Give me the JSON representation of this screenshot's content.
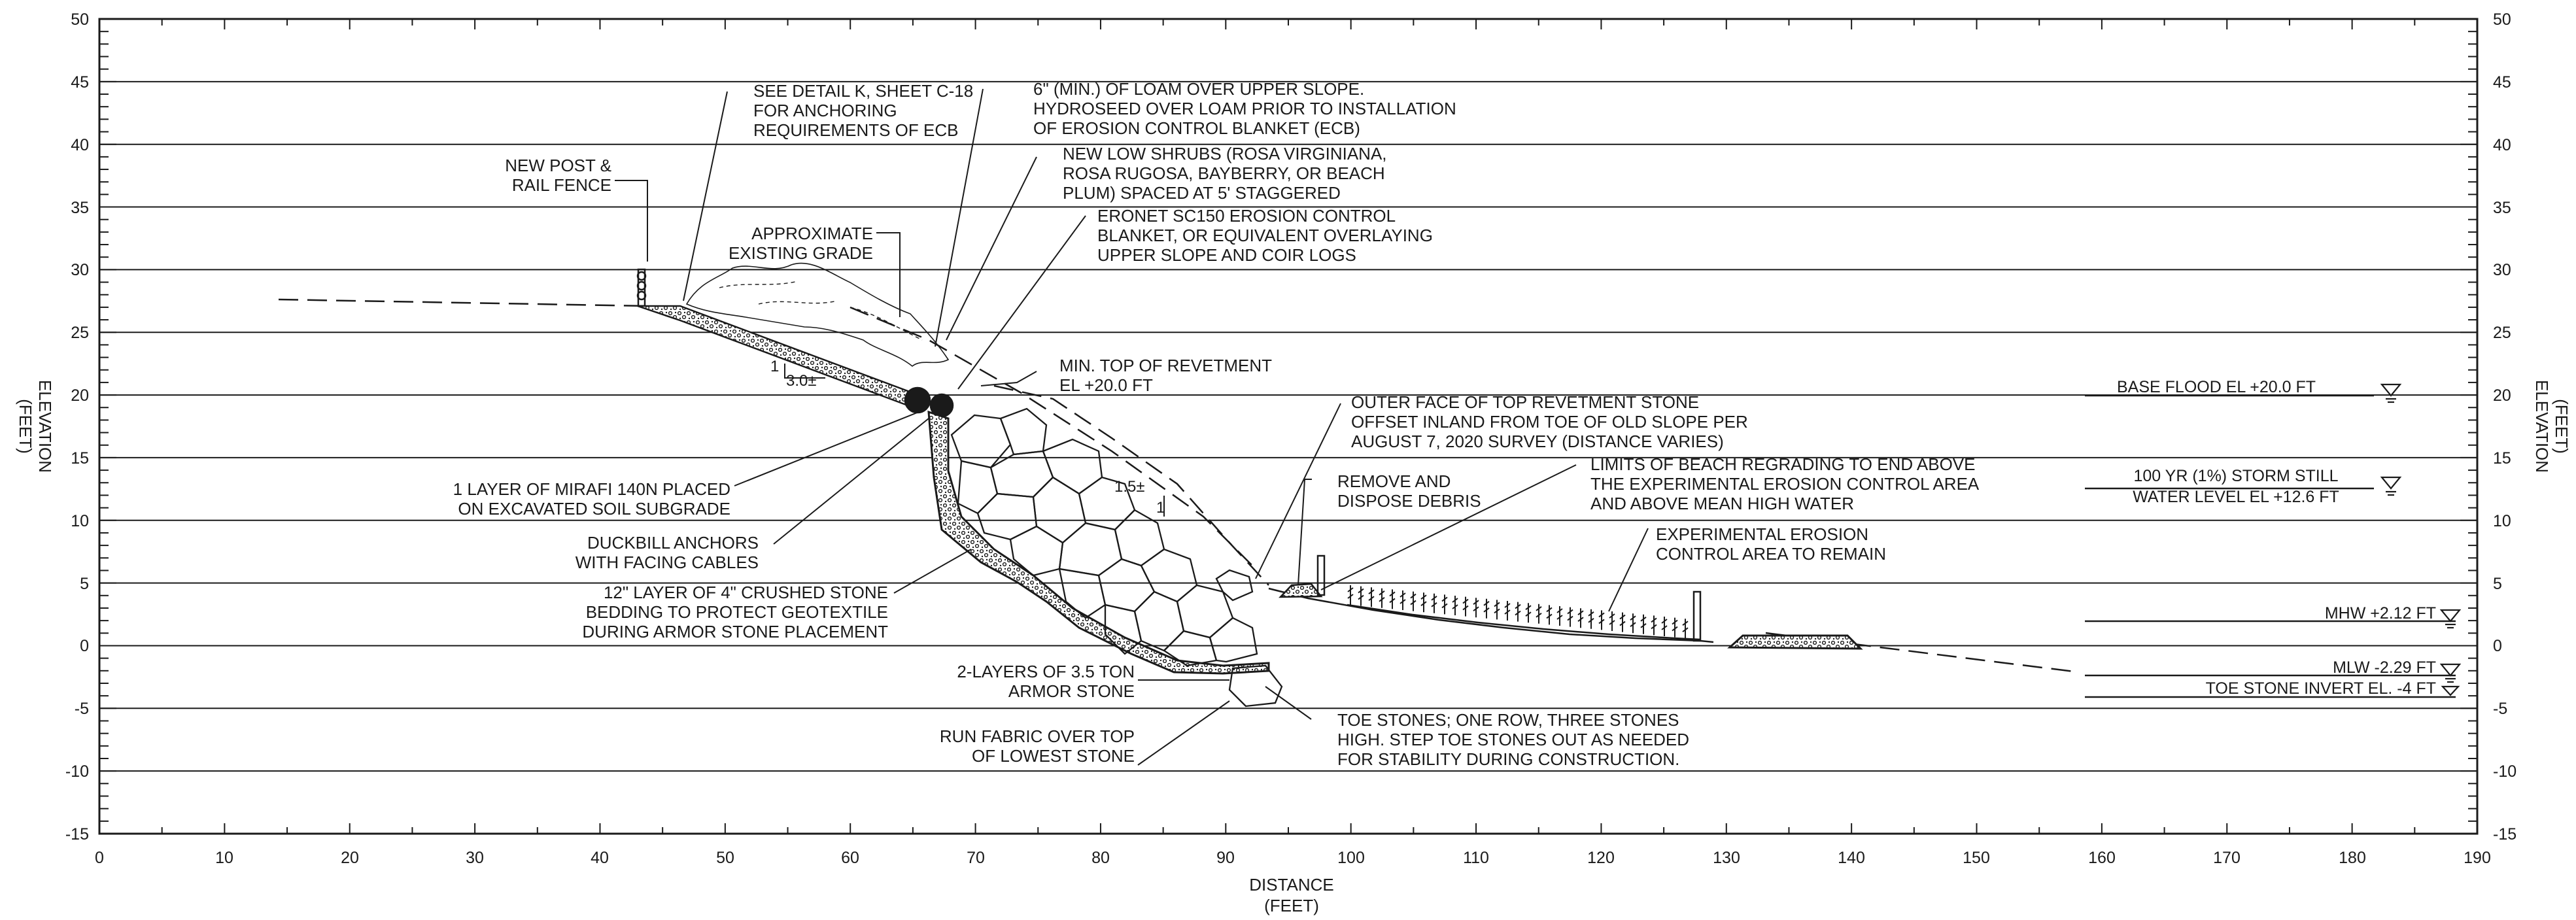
{
  "axes": {
    "x_title": [
      "DISTANCE",
      "(FEET)"
    ],
    "y_title": [
      "ELEVATION",
      "(FEET)"
    ],
    "x_ticks": [
      "0",
      "10",
      "20",
      "30",
      "40",
      "50",
      "60",
      "70",
      "80",
      "90",
      "100",
      "110",
      "120",
      "130",
      "140",
      "150",
      "160",
      "170",
      "180",
      "190"
    ],
    "y_ticks": [
      "50",
      "45",
      "40",
      "35",
      "30",
      "25",
      "20",
      "15",
      "10",
      "5",
      "0",
      "-5",
      "-10",
      "-15"
    ],
    "x_range": [
      0,
      190
    ],
    "y_range": [
      -15,
      50
    ],
    "grid": "horizontal lines every 5 ft"
  },
  "annotations": {
    "fence": [
      "NEW POST &",
      "RAIL FENCE"
    ],
    "detail_k": [
      "SEE DETAIL K, SHEET C-18",
      "FOR ANCHORING",
      "REQUIREMENTS OF ECB"
    ],
    "loam": [
      "6\" (MIN.) OF LOAM OVER UPPER SLOPE.",
      "HYDROSEED OVER LOAM PRIOR TO INSTALLATION",
      "OF EROSION CONTROL BLANKET (ECB)"
    ],
    "shrubs": [
      "NEW LOW SHRUBS (ROSA VIRGINIANA,",
      "ROSA RUGOSA, BAYBERRY, OR BEACH",
      "PLUM) SPACED AT 5' STAGGERED"
    ],
    "eronet": [
      "ERONET SC150 EROSION CONTROL",
      "BLANKET, OR EQUIVALENT OVERLAYING",
      "UPPER SLOPE AND COIR LOGS"
    ],
    "grade": [
      "APPROXIMATE",
      "EXISTING GRADE"
    ],
    "min_top": [
      "MIN. TOP OF REVETMENT",
      "EL +20.0 FT"
    ],
    "slope_upper": [
      "1",
      "3.0±"
    ],
    "slope_lower": [
      "1.5±",
      "1"
    ],
    "outer_face": [
      "OUTER FACE OF TOP REVETMENT STONE",
      "OFFSET INLAND FROM TOE OF OLD SLOPE PER",
      "AUGUST 7, 2020 SURVEY (DISTANCE VARIES)"
    ],
    "mirafi": [
      "1 LAYER OF MIRAFI 140N PLACED",
      "ON EXCAVATED SOIL SUBGRADE"
    ],
    "duckbill": [
      "DUCKBILL ANCHORS",
      "WITH FACING CABLES"
    ],
    "bedding": [
      "12\" LAYER OF 4\" CRUSHED STONE",
      "BEDDING TO PROTECT GEOTEXTILE",
      "DURING ARMOR STONE PLACEMENT"
    ],
    "debris": [
      "REMOVE AND",
      "DISPOSE DEBRIS"
    ],
    "beach_limits": [
      "LIMITS OF BEACH REGRADING TO END ABOVE",
      "THE EXPERIMENTAL EROSION CONTROL AREA",
      "AND ABOVE MEAN HIGH WATER"
    ],
    "experimental": [
      "EXPERIMENTAL EROSION",
      "CONTROL AREA TO REMAIN"
    ],
    "armor": [
      "2-LAYERS OF 3.5 TON",
      "ARMOR STONE"
    ],
    "fabric": [
      "RUN FABRIC OVER TOP",
      "OF LOWEST STONE"
    ],
    "toe_stones": [
      "TOE STONES; ONE ROW, THREE STONES",
      "HIGH. STEP TOE STONES OUT AS NEEDED",
      "FOR STABILITY DURING CONSTRUCTION."
    ]
  },
  "water_levels": {
    "base_flood": "BASE FLOOD EL +20.0 FT",
    "storm": [
      "100 YR (1%) STORM STILL",
      "WATER LEVEL EL +12.6 FT"
    ],
    "mhw": "MHW +2.12 FT",
    "mlw": "MLW -2.29 FT",
    "toe_invert": "TOE STONE INVERT EL. -4 FT"
  },
  "colors": {
    "ink": "#1a1a1a",
    "background": "#ffffff"
  }
}
